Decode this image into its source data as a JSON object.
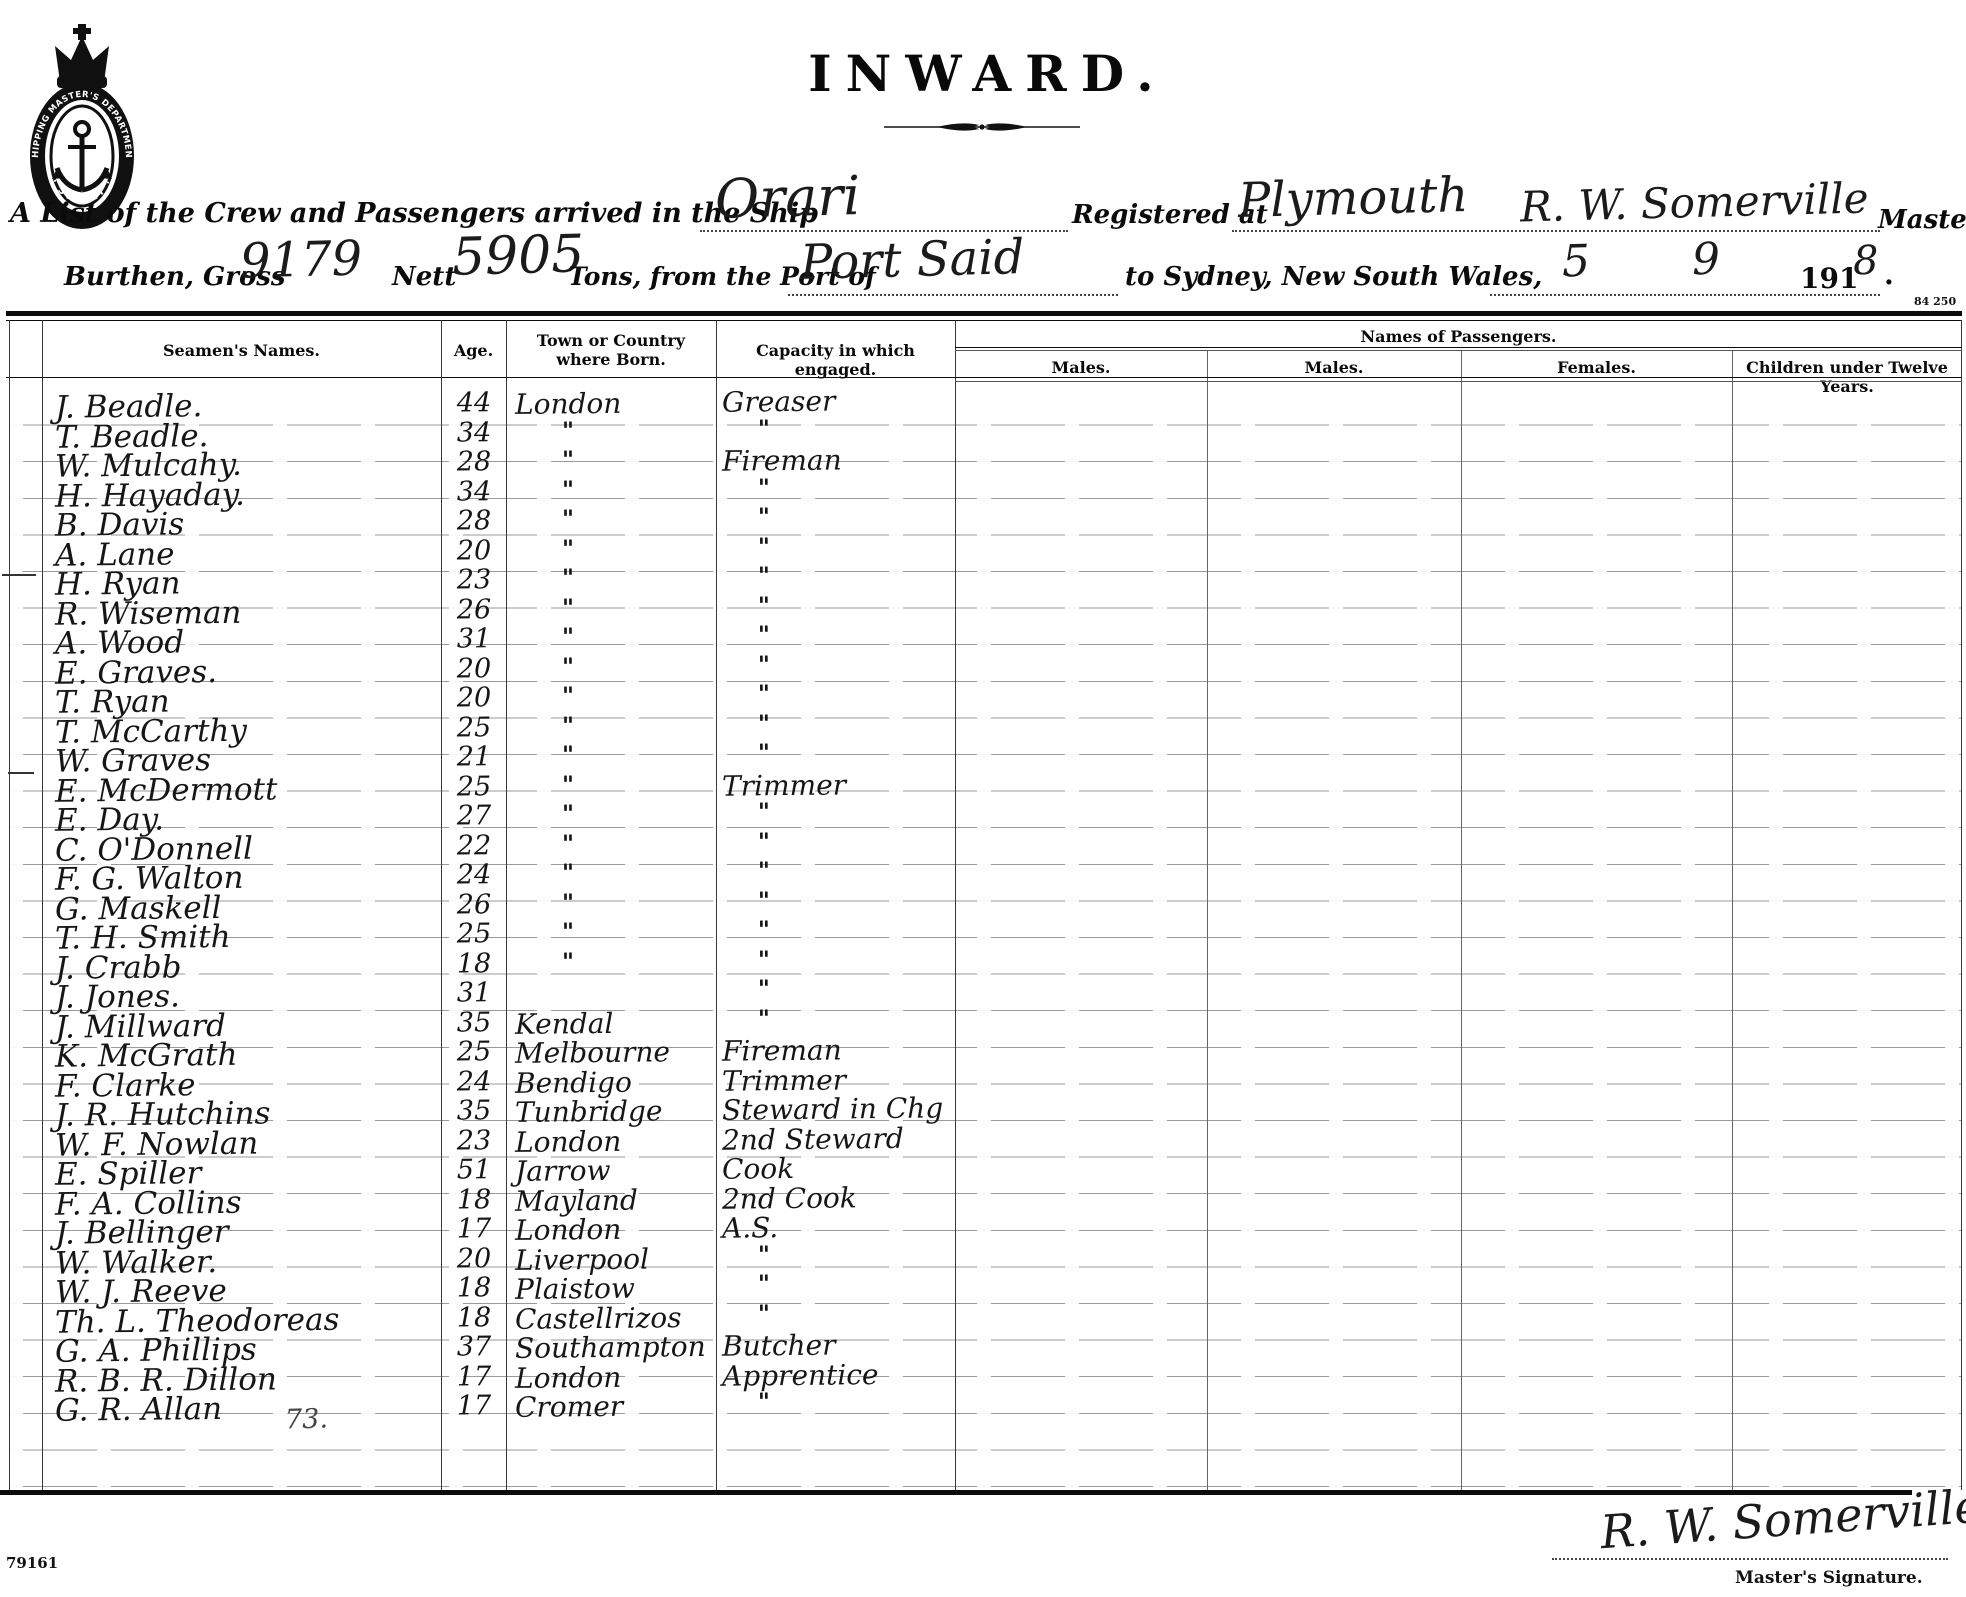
{
  "seal": {
    "ring_text_top": "SHIPPING MASTER'S DEPARTMENT",
    "ring_text_bottom": "· SYDNEY ·"
  },
  "title": "INWARD.",
  "stamp_code": "84 250",
  "form": {
    "line1_label": "A List of the Crew and Passengers arrived in the Ship",
    "ship_name": "Orari",
    "registered_at_label": "Registered at",
    "registered_at": "Plymouth",
    "master_name": "R. W. Somerville",
    "master_label": "Master,",
    "burthen_label": "Burthen, Gross",
    "gross_tons": "9179",
    "nett_label": "Nett",
    "nett_tons": "5905",
    "tons_label": "Tons, from the Port of",
    "port_from": "Port Said",
    "destination_label": "to Sydney, New South Wales,",
    "arrival_day": "5",
    "arrival_month": "9",
    "year_printed": "191",
    "year_digit": "8",
    "period": "."
  },
  "table": {
    "columns": [
      "Seamen's Names.",
      "Age.",
      "Town or Country where Born.",
      "Capacity in which engaged."
    ],
    "passengers_header": "Names of Passengers.",
    "passenger_columns": [
      "Males.",
      "Males.",
      "Females.",
      "Children under Twelve Years."
    ],
    "crew_count_note": "73.",
    "rows": [
      {
        "name": "J. Beadle.",
        "age": "44",
        "born": "London",
        "capacity": "Greaser"
      },
      {
        "name": "T. Beadle.",
        "age": "34",
        "born": "\"",
        "capacity": "\""
      },
      {
        "name": "W. Mulcahy.",
        "age": "28",
        "born": "\"",
        "capacity": "Fireman"
      },
      {
        "name": "H. Hayaday.",
        "age": "34",
        "born": "\"",
        "capacity": "\""
      },
      {
        "name": "B. Davis",
        "age": "28",
        "born": "\"",
        "capacity": "\""
      },
      {
        "name": "A. Lane",
        "age": "20",
        "born": "\"",
        "capacity": "\""
      },
      {
        "name": "H. Ryan",
        "age": "23",
        "born": "\"",
        "capacity": "\""
      },
      {
        "name": "R. Wiseman",
        "age": "26",
        "born": "\"",
        "capacity": "\""
      },
      {
        "name": "A. Wood",
        "age": "31",
        "born": "\"",
        "capacity": "\""
      },
      {
        "name": "E. Graves.",
        "age": "20",
        "born": "\"",
        "capacity": "\""
      },
      {
        "name": "T. Ryan",
        "age": "20",
        "born": "\"",
        "capacity": "\""
      },
      {
        "name": "T. McCarthy",
        "age": "25",
        "born": "\"",
        "capacity": "\""
      },
      {
        "name": "W. Graves",
        "age": "21",
        "born": "\"",
        "capacity": "\""
      },
      {
        "name": "E. McDermott",
        "age": "25",
        "born": "\"",
        "capacity": "Trimmer"
      },
      {
        "name": "E. Day.",
        "age": "27",
        "born": "\"",
        "capacity": "\""
      },
      {
        "name": "C. O'Donnell",
        "age": "22",
        "born": "\"",
        "capacity": "\""
      },
      {
        "name": "F. G. Walton",
        "age": "24",
        "born": "\"",
        "capacity": "\""
      },
      {
        "name": "G. Maskell",
        "age": "26",
        "born": "\"",
        "capacity": "\""
      },
      {
        "name": "T. H. Smith",
        "age": "25",
        "born": "\"",
        "capacity": "\""
      },
      {
        "name": "J. Crabb",
        "age": "18",
        "born": "\"",
        "capacity": "\""
      },
      {
        "name": "J. Jones.",
        "age": "31",
        "born": "",
        "capacity": "\""
      },
      {
        "name": "J. Millward",
        "age": "35",
        "born": "Kendal",
        "capacity": "\""
      },
      {
        "name": "K. McGrath",
        "age": "25",
        "born": "Melbourne",
        "capacity": "Fireman"
      },
      {
        "name": "F. Clarke",
        "age": "24",
        "born": "Bendigo",
        "capacity": "Trimmer"
      },
      {
        "name": "J. R. Hutchins",
        "age": "35",
        "born": "Tunbridge",
        "capacity": "Steward in Chg"
      },
      {
        "name": "W. F. Nowlan",
        "age": "23",
        "born": "London",
        "capacity": "2nd Steward"
      },
      {
        "name": "E. Spiller",
        "age": "51",
        "born": "Jarrow",
        "capacity": "Cook"
      },
      {
        "name": "F. A. Collins",
        "age": "18",
        "born": "Mayland",
        "capacity": "2nd Cook"
      },
      {
        "name": "J. Bellinger",
        "age": "17",
        "born": "London",
        "capacity": "A.S."
      },
      {
        "name": "W. Walker.",
        "age": "20",
        "born": "Liverpool",
        "capacity": "\""
      },
      {
        "name": "W. J. Reeve",
        "age": "18",
        "born": "Plaistow",
        "capacity": "\""
      },
      {
        "name": "Th. L. Theodoreas",
        "age": "18",
        "born": "Castellrizos",
        "capacity": "\""
      },
      {
        "name": "G. A. Phillips",
        "age": "37",
        "born": "Southampton",
        "capacity": "Butcher"
      },
      {
        "name": "R. B. R. Dillon",
        "age": "17",
        "born": "London",
        "capacity": "Apprentice"
      },
      {
        "name": "G. R. Allan",
        "age": "17",
        "born": "Cromer",
        "capacity": "\""
      }
    ]
  },
  "footer": {
    "form_number": "79161",
    "masters_signature": "R. W. Somerville",
    "signature_label": "Master's Signature."
  }
}
